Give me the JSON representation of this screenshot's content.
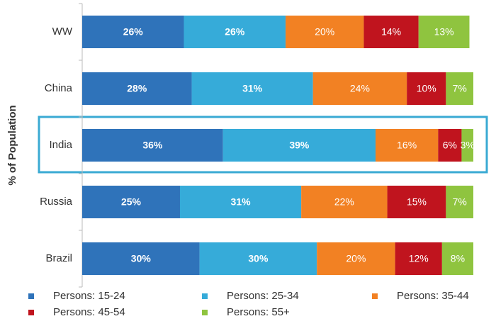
{
  "chart_data": {
    "type": "stacked-bar-horizontal",
    "y_label": "% of Population",
    "categories": [
      "WW",
      "China",
      "India",
      "Russia",
      "Brazil"
    ],
    "xlim": [
      0,
      100
    ],
    "series": [
      {
        "name": "Persons: 15-24",
        "color": "#2f73ba",
        "values": [
          26,
          28,
          36,
          25,
          30
        ],
        "value_labels": [
          "26%",
          "28%",
          "36%",
          "25%",
          "30%"
        ]
      },
      {
        "name": "Persons: 25-34",
        "color": "#36abd9",
        "values": [
          26,
          31,
          39,
          31,
          30
        ],
        "value_labels": [
          "26%",
          "31%",
          "39%",
          "31%",
          "30%"
        ]
      },
      {
        "name": "Persons: 35-44",
        "color": "#f28123",
        "values": [
          20,
          24,
          16,
          22,
          20
        ],
        "value_labels": [
          "20%",
          "24%",
          "16%",
          "22%",
          "20%"
        ]
      },
      {
        "name": "Persons: 45-54",
        "color": "#c0141e",
        "values": [
          14,
          10,
          6,
          15,
          12
        ],
        "value_labels": [
          "14%",
          "10%",
          "6%",
          "15%",
          "12%"
        ]
      },
      {
        "name": "Persons: 55+",
        "color": "#8fc43f",
        "values": [
          13,
          7,
          3,
          7,
          8
        ],
        "value_labels": [
          "13%",
          "7%",
          "3%",
          "7%",
          "8%"
        ]
      }
    ]
  }
}
